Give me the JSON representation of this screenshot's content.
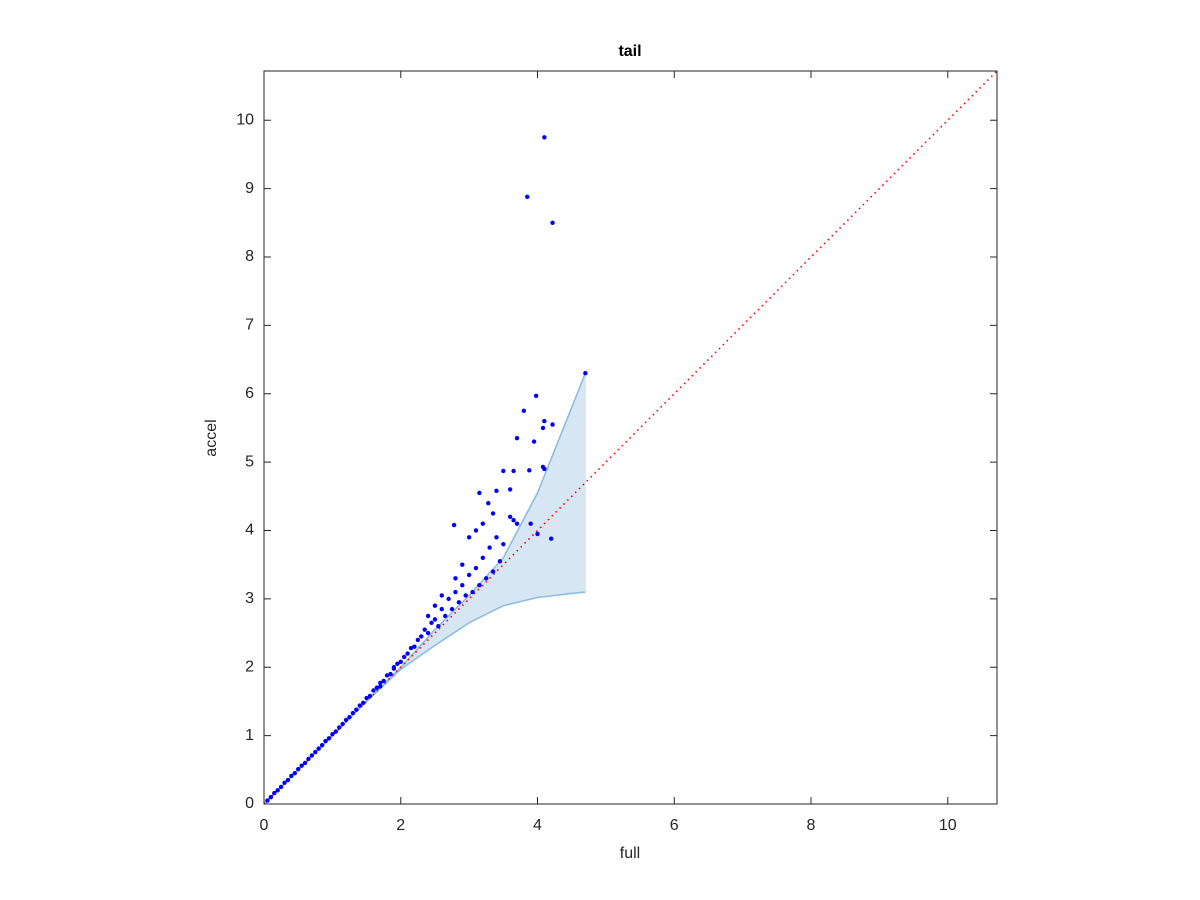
{
  "chart_data": {
    "type": "scatter",
    "title": "tail",
    "x_label": "full",
    "y_label": "accel",
    "xlim": [
      0,
      10.72
    ],
    "ylim": [
      0,
      10.72
    ],
    "xticks": [
      0,
      2,
      4,
      6,
      8,
      10
    ],
    "yticks": [
      0,
      1,
      2,
      3,
      4,
      5,
      6,
      7,
      8,
      9,
      10
    ],
    "reference_line": {
      "color": "#ff0000",
      "x": [
        0,
        10.72
      ],
      "y": [
        0,
        10.72
      ]
    },
    "band": {
      "color": "#d6e6f3",
      "edge_color": "#8dbde0",
      "x": [
        0,
        0.5,
        1,
        1.5,
        2,
        2.5,
        3,
        3.5,
        4,
        4.5,
        4.7
      ],
      "upper": [
        0,
        0.5,
        1,
        1.5,
        2,
        2.55,
        3.05,
        3.6,
        4.55,
        5.8,
        6.3
      ],
      "lower": [
        0,
        0.5,
        1,
        1.5,
        1.97,
        2.32,
        2.65,
        2.9,
        3.02,
        3.08,
        3.1
      ]
    },
    "points": {
      "color": "#0000ff",
      "x": [
        0.05,
        0.1,
        0.15,
        0.2,
        0.25,
        0.3,
        0.35,
        0.4,
        0.45,
        0.5,
        0.55,
        0.6,
        0.65,
        0.7,
        0.75,
        0.8,
        0.85,
        0.9,
        0.95,
        1.0,
        1.05,
        1.1,
        1.15,
        1.2,
        1.25,
        1.3,
        1.35,
        1.4,
        1.45,
        1.5,
        1.55,
        1.6,
        1.65,
        1.7,
        1.75,
        1.8,
        1.85,
        1.9,
        1.95,
        2.0,
        2.05,
        2.1,
        2.15,
        2.2,
        2.25,
        2.3,
        2.35,
        2.4,
        2.45,
        2.5,
        2.55,
        2.6,
        2.65,
        2.7,
        2.75,
        2.8,
        2.85,
        2.9,
        2.95,
        3.0,
        3.05,
        3.1,
        3.15,
        3.2,
        3.25,
        3.3,
        3.35,
        3.4,
        3.45,
        2.4,
        2.6,
        2.9,
        3.0,
        3.1,
        3.2,
        3.35,
        2.8,
        2.5,
        1.9,
        1.7,
        4.1,
        3.85,
        4.22,
        4.7,
        3.98,
        3.8,
        4.1,
        4.22,
        4.08,
        3.95,
        3.7,
        3.5,
        3.65,
        4.08,
        3.88,
        4.1,
        3.6,
        3.4,
        3.15,
        2.78,
        3.28,
        3.6,
        3.65,
        4.0,
        4.2,
        3.9,
        3.7,
        3.5
      ],
      "y": [
        0.05,
        0.1,
        0.16,
        0.2,
        0.25,
        0.31,
        0.35,
        0.41,
        0.45,
        0.51,
        0.56,
        0.6,
        0.66,
        0.71,
        0.76,
        0.81,
        0.86,
        0.92,
        0.96,
        1.02,
        1.06,
        1.12,
        1.17,
        1.23,
        1.27,
        1.33,
        1.38,
        1.44,
        1.48,
        1.55,
        1.58,
        1.66,
        1.7,
        1.77,
        1.8,
        1.88,
        1.9,
        1.98,
        2.05,
        2.08,
        2.15,
        2.2,
        2.28,
        2.3,
        2.4,
        2.45,
        2.55,
        2.5,
        2.65,
        2.7,
        2.6,
        2.85,
        2.75,
        3.0,
        2.85,
        3.1,
        2.95,
        3.2,
        3.05,
        3.35,
        3.1,
        3.45,
        3.2,
        3.6,
        3.3,
        3.75,
        3.4,
        3.9,
        3.55,
        2.75,
        3.05,
        3.5,
        3.9,
        4.0,
        4.1,
        4.25,
        3.3,
        2.9,
        2.0,
        1.72,
        9.75,
        8.88,
        8.5,
        6.3,
        5.97,
        5.75,
        5.6,
        5.55,
        5.5,
        5.3,
        5.35,
        4.87,
        4.87,
        4.93,
        4.88,
        4.9,
        4.6,
        4.58,
        4.55,
        4.08,
        4.4,
        4.2,
        4.15,
        3.95,
        3.88,
        4.1,
        4.1,
        3.8
      ]
    }
  }
}
